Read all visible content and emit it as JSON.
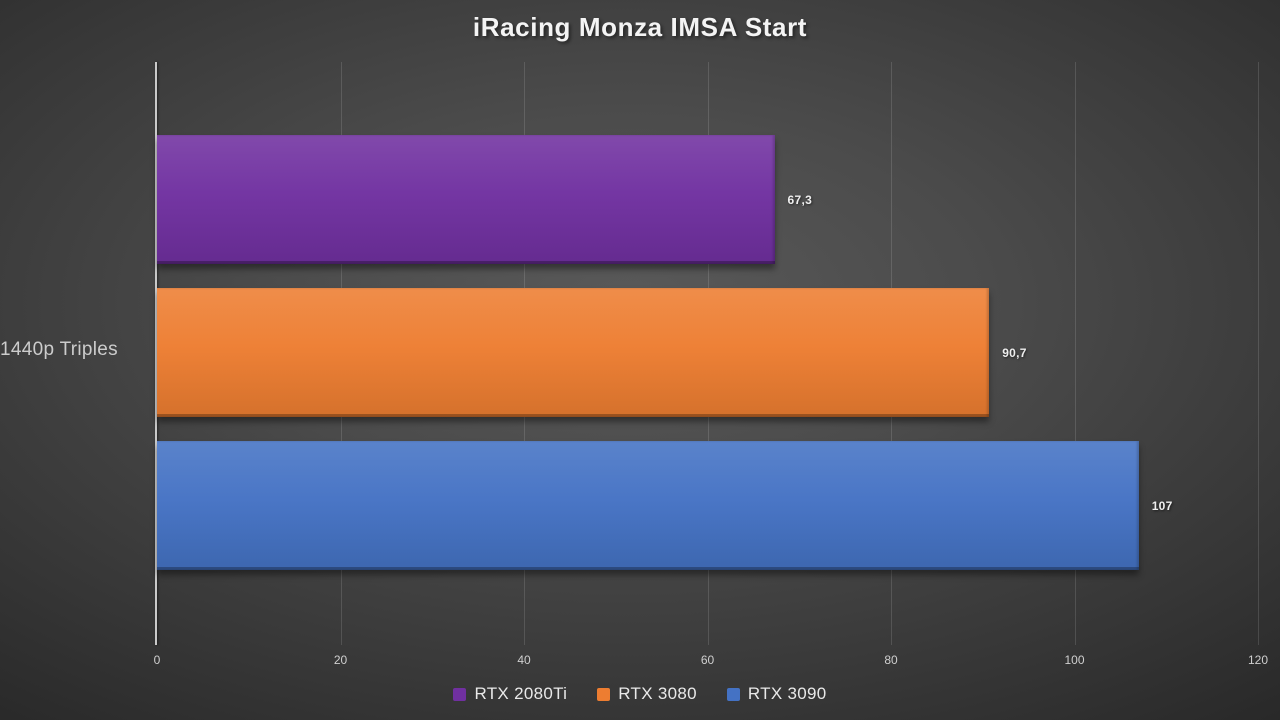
{
  "title": "iRacing Monza IMSA Start",
  "chart_data": {
    "type": "bar",
    "orientation": "horizontal",
    "title": "iRacing Monza IMSA Start",
    "categories": [
      "1440p Triples"
    ],
    "series": [
      {
        "name": "RTX 2080Ti",
        "color": "#7030A0",
        "values": [
          67.3
        ],
        "value_label": "67,3"
      },
      {
        "name": "RTX 3080",
        "color": "#ED7D31",
        "values": [
          90.7
        ],
        "value_label": "90,7"
      },
      {
        "name": "RTX 3090",
        "color": "#4472C4",
        "values": [
          107
        ],
        "value_label": "107"
      }
    ],
    "xlim": [
      0,
      120
    ],
    "x_ticks": [
      0,
      20,
      40,
      60,
      80,
      100,
      120
    ],
    "grid": true,
    "legend_position": "bottom"
  }
}
